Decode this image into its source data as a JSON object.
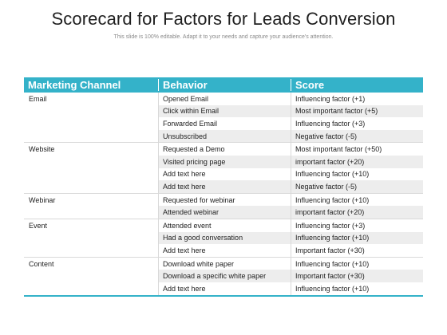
{
  "slide": {
    "title": "Scorecard for Factors for Leads Conversion",
    "subtitle": "This slide is 100% editable. Adapt it to your needs and capture your audience's attention."
  },
  "table": {
    "headers": [
      "Marketing Channel",
      "Behavior",
      "Score"
    ],
    "groups": [
      {
        "channel": "Email",
        "rows": [
          {
            "behavior": "Opened  Email",
            "score": "Influencing  factor (+1)"
          },
          {
            "behavior": "Click within  Email",
            "score": "Most important  factor (+5)"
          },
          {
            "behavior": "Forwarded  Email",
            "score": "Influencing  factor (+3)"
          },
          {
            "behavior": "Unsubscribed",
            "score": "Negative  factor  (-5)"
          }
        ]
      },
      {
        "channel": "Website",
        "rows": [
          {
            "behavior": "Requested  a Demo",
            "score": "Most important factor (+50)"
          },
          {
            "behavior": "Visited  pricing page",
            "score": "important  factor  (+20)"
          },
          {
            "behavior": "Add text here",
            "score": "Influencing  factor  (+10)"
          },
          {
            "behavior": "Add text here",
            "score": "Negative  factor  (-5)"
          }
        ]
      },
      {
        "channel": "Webinar",
        "rows": [
          {
            "behavior": "Requested  for webinar",
            "score": "Influencing  factor  (+10)"
          },
          {
            "behavior": "Attended  webinar",
            "score": "important  factor  (+20)"
          }
        ]
      },
      {
        "channel": "Event",
        "rows": [
          {
            "behavior": "Attended  event",
            "score": "Influencing  factor  (+3)"
          },
          {
            "behavior": "Had a good  conversation",
            "score": "Influencing  factor  (+10)"
          },
          {
            "behavior": "Add text here",
            "score": "Important  factor  (+30)"
          }
        ]
      },
      {
        "channel": "Content",
        "rows": [
          {
            "behavior": "Download  white paper",
            "score": "Influencing  factor  (+10)"
          },
          {
            "behavior": "Download  a specific white paper",
            "score": "Important  factor  (+30)"
          },
          {
            "behavior": "Add text here",
            "score": "Influencing  factor  (+10)"
          }
        ]
      }
    ]
  },
  "colors": {
    "header_bg": "#34b2c9",
    "row_shade": "#ededed"
  }
}
